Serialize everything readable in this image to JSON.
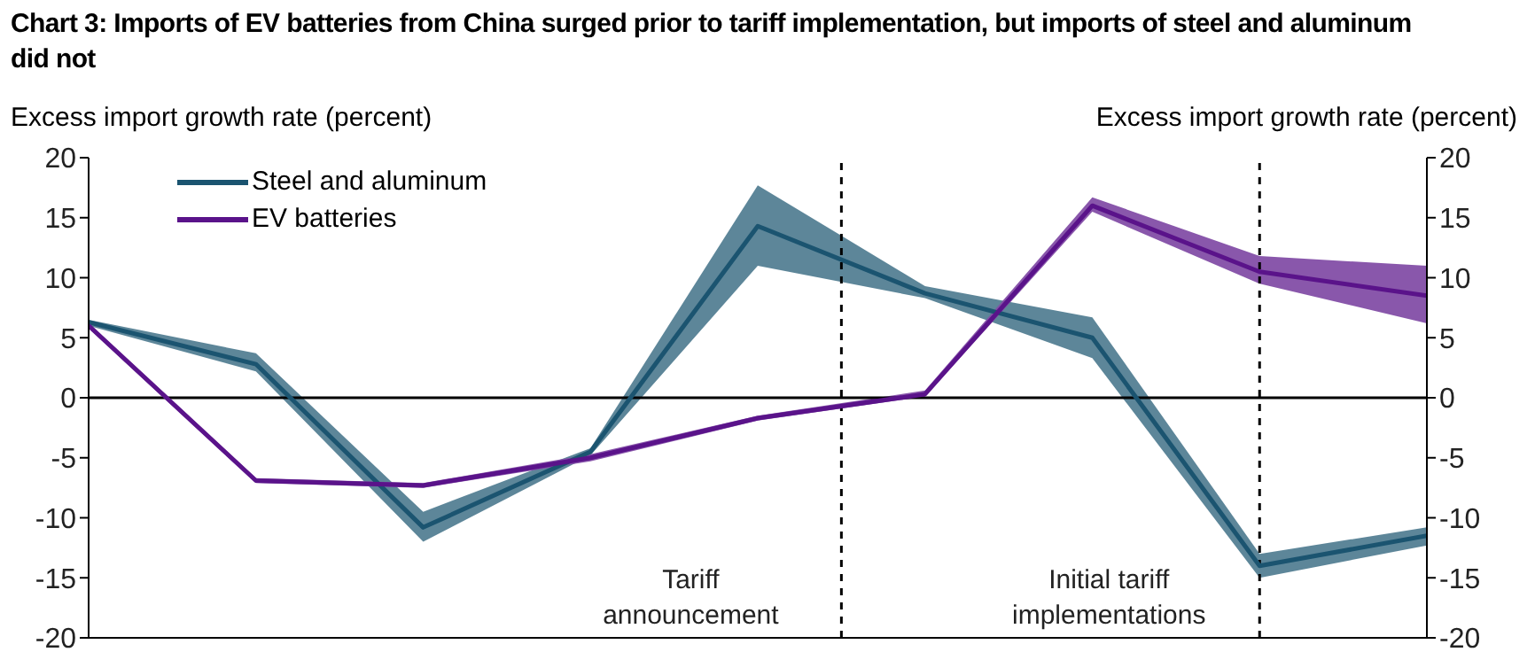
{
  "chart_data": {
    "type": "line",
    "title": "Chart 3: Imports of EV batteries from China surged prior to tariff implementation, but imports of steel and aluminum did not",
    "ylabel": "Excess import growth rate (percent)",
    "y2label": "Excess import growth rate (percent)",
    "categories": [
      null,
      null,
      null,
      null,
      null,
      null,
      null,
      null,
      null
    ],
    "ylim": [
      -20,
      20
    ],
    "yticks": [
      -20,
      -15,
      -10,
      -5,
      0,
      5,
      10,
      15,
      20
    ],
    "y2lim": [
      -20,
      20
    ],
    "y2ticks": [
      -20,
      -15,
      -10,
      -5,
      0,
      5,
      10,
      15,
      20
    ],
    "tick_labels": "y",
    "grid": false,
    "legend": "top left",
    "marker": "none",
    "line_style": "solid",
    "series": [
      {
        "name": "Steel and aluminum",
        "color": "#1b5470",
        "values": [
          6.3,
          2.8,
          -10.8,
          -4.5,
          14.3,
          8.7,
          5,
          -14,
          -11.5
        ],
        "lower": [
          6,
          2.2,
          -12,
          -4.8,
          11,
          8.3,
          3.3,
          -15,
          -12.3
        ],
        "upper": [
          6.5,
          3.7,
          -9.5,
          -4.2,
          17.7,
          9.3,
          6.7,
          -13,
          -10.8
        ]
      },
      {
        "name": "EV batteries",
        "color": "#5a138a",
        "values": [
          6,
          -6.9,
          -7.3,
          -5,
          -1.7,
          0.3,
          16,
          10.5,
          8.5
        ],
        "lower": [
          5.8,
          -7.1,
          -7.5,
          -5.3,
          -1.9,
          0.1,
          15.5,
          9.5,
          6.2
        ],
        "upper": [
          6.2,
          -6.7,
          -7.1,
          -4.7,
          -1.5,
          0.6,
          16.7,
          11.8,
          11
        ]
      }
    ],
    "ref_lines": [
      {
        "axis": "y",
        "value": 0,
        "color": "#000000",
        "line_style": "solid"
      }
    ],
    "annotations": [
      "Tariff announcement",
      "Initial tariff implementations"
    ]
  }
}
